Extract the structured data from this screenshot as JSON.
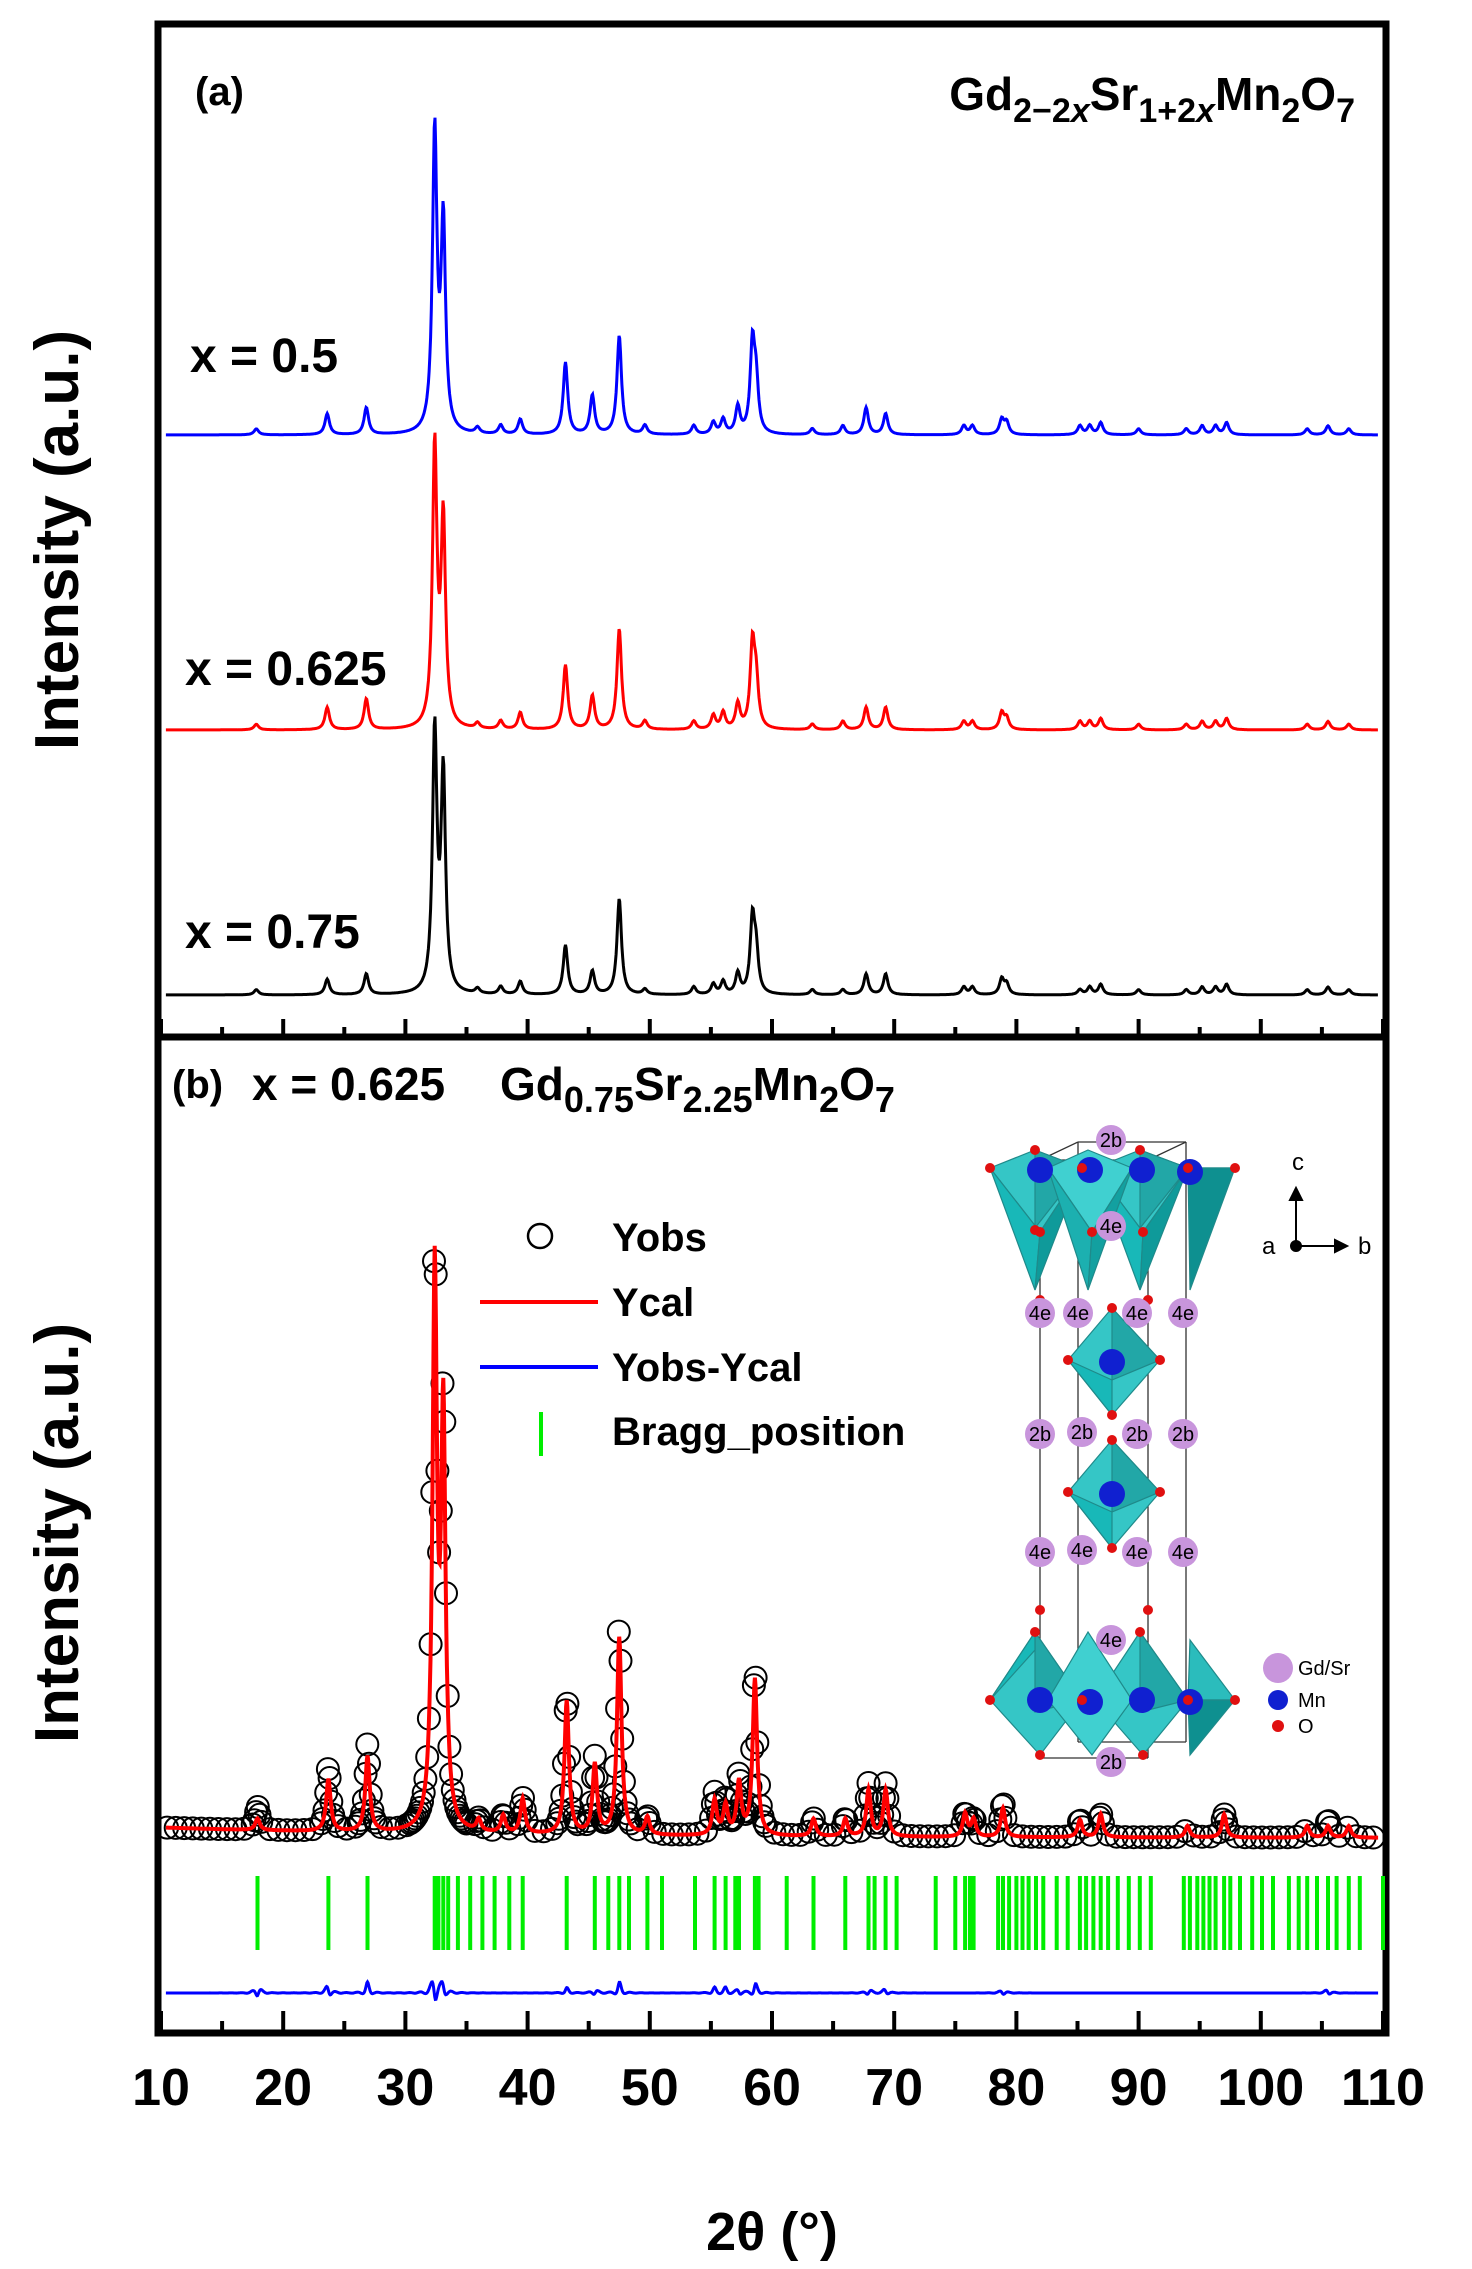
{
  "chart_data": [
    {
      "panel": "a",
      "type": "line",
      "title": "Gd2-2xSr1+2xMn2O7",
      "panel_label": "(a)",
      "xlabel": "2θ (°)",
      "ylabel": "Intensity (a.u.)",
      "xlim": [
        10,
        110
      ],
      "peak_positions": [
        17.8,
        23.6,
        26.8,
        32.4,
        33.1,
        35.9,
        37.8,
        39.4,
        43.1,
        45.3,
        47.5,
        49.6,
        53.6,
        55.2,
        56.0,
        57.2,
        58.4,
        58.7,
        63.3,
        65.8,
        67.7,
        69.3,
        75.7,
        76.4,
        78.8,
        79.2,
        85.2,
        86.0,
        86.9,
        90.0,
        93.9,
        95.2,
        96.3,
        97.2,
        103.8,
        105.5,
        107.2
      ],
      "series": [
        {
          "name": "x = 0.5",
          "color": "#0000ff",
          "offset": 0.56,
          "scale": 0.3,
          "intensities": [
            0.02,
            0.07,
            0.09,
            1.0,
            0.69,
            0.02,
            0.03,
            0.05,
            0.24,
            0.13,
            0.33,
            0.03,
            0.03,
            0.04,
            0.05,
            0.09,
            0.29,
            0.16,
            0.02,
            0.03,
            0.09,
            0.07,
            0.03,
            0.03,
            0.05,
            0.04,
            0.03,
            0.03,
            0.04,
            0.02,
            0.02,
            0.03,
            0.03,
            0.04,
            0.02,
            0.03,
            0.02
          ]
        },
        {
          "name": "x = 0.625",
          "color": "#ff0000",
          "offset": 0.265,
          "scale": 0.28,
          "intensities": [
            0.02,
            0.08,
            0.11,
            1.0,
            0.73,
            0.02,
            0.03,
            0.06,
            0.23,
            0.12,
            0.36,
            0.03,
            0.03,
            0.05,
            0.06,
            0.09,
            0.29,
            0.16,
            0.02,
            0.03,
            0.08,
            0.08,
            0.03,
            0.03,
            0.06,
            0.04,
            0.03,
            0.03,
            0.04,
            0.02,
            0.02,
            0.03,
            0.03,
            0.04,
            0.02,
            0.03,
            0.02
          ]
        },
        {
          "name": "x = 0.75",
          "color": "#000000",
          "offset": 0.0,
          "scale": 0.26,
          "intensities": [
            0.02,
            0.06,
            0.08,
            1.0,
            0.83,
            0.02,
            0.03,
            0.05,
            0.19,
            0.09,
            0.37,
            0.02,
            0.03,
            0.04,
            0.05,
            0.08,
            0.28,
            0.15,
            0.02,
            0.02,
            0.08,
            0.08,
            0.03,
            0.03,
            0.06,
            0.04,
            0.02,
            0.03,
            0.04,
            0.02,
            0.02,
            0.03,
            0.03,
            0.04,
            0.02,
            0.03,
            0.02
          ]
        }
      ]
    },
    {
      "panel": "b",
      "type": "scatter",
      "panel_label": "(b)",
      "title_prefix": "x = 0.625",
      "title": "Gd0.75Sr2.25Mn2O7",
      "xlabel": "2θ (°)",
      "ylabel": "Intensity (a.u.)",
      "xlim": [
        10,
        110
      ],
      "xticks": [
        10,
        20,
        30,
        40,
        50,
        60,
        70,
        80,
        90,
        100,
        110
      ],
      "legend": {
        "position": "center",
        "entries": [
          {
            "label": "Yobs",
            "color": "#000000",
            "marker": "circle"
          },
          {
            "label": "Ycal",
            "color": "#ff0000",
            "marker": "line"
          },
          {
            "label": "Yobs-Ycal",
            "color": "#0000ff",
            "marker": "line"
          },
          {
            "label": "Bragg_position",
            "color": "#00ee00",
            "marker": "tick"
          }
        ]
      },
      "peaks": [
        {
          "x": 17.9,
          "yobs": 0.04,
          "ycal": 0.02
        },
        {
          "x": 23.7,
          "yobs": 0.11,
          "ycal": 0.09
        },
        {
          "x": 26.9,
          "yobs": 0.15,
          "ycal": 0.13
        },
        {
          "x": 32.4,
          "yobs": 1.0,
          "ycal": 0.95
        },
        {
          "x": 33.1,
          "yobs": 0.72,
          "ycal": 0.7
        },
        {
          "x": 36.0,
          "yobs": 0.02,
          "ycal": 0.02
        },
        {
          "x": 38.0,
          "yobs": 0.03,
          "ycal": 0.03
        },
        {
          "x": 39.6,
          "yobs": 0.06,
          "ycal": 0.06
        },
        {
          "x": 43.2,
          "yobs": 0.24,
          "ycal": 0.23
        },
        {
          "x": 45.5,
          "yobs": 0.13,
          "ycal": 0.12
        },
        {
          "x": 47.5,
          "yobs": 0.36,
          "ycal": 0.34
        },
        {
          "x": 49.8,
          "yobs": 0.03,
          "ycal": 0.03
        },
        {
          "x": 55.3,
          "yobs": 0.07,
          "ycal": 0.06
        },
        {
          "x": 56.2,
          "yobs": 0.06,
          "ycal": 0.05
        },
        {
          "x": 57.3,
          "yobs": 0.1,
          "ycal": 0.09
        },
        {
          "x": 58.6,
          "yobs": 0.29,
          "ycal": 0.27
        },
        {
          "x": 63.4,
          "yobs": 0.03,
          "ycal": 0.03
        },
        {
          "x": 66.0,
          "yobs": 0.03,
          "ycal": 0.03
        },
        {
          "x": 67.9,
          "yobs": 0.09,
          "ycal": 0.08
        },
        {
          "x": 69.3,
          "yobs": 0.09,
          "ycal": 0.08
        },
        {
          "x": 75.8,
          "yobs": 0.04,
          "ycal": 0.04
        },
        {
          "x": 76.5,
          "yobs": 0.03,
          "ycal": 0.03
        },
        {
          "x": 78.9,
          "yobs": 0.06,
          "ycal": 0.05
        },
        {
          "x": 85.2,
          "yobs": 0.03,
          "ycal": 0.03
        },
        {
          "x": 86.9,
          "yobs": 0.04,
          "ycal": 0.04
        },
        {
          "x": 94.0,
          "yobs": 0.02,
          "ycal": 0.02
        },
        {
          "x": 97.0,
          "yobs": 0.04,
          "ycal": 0.04
        },
        {
          "x": 103.8,
          "yobs": 0.02,
          "ycal": 0.02
        },
        {
          "x": 105.5,
          "yobs": 0.03,
          "ycal": 0.02
        },
        {
          "x": 107.2,
          "yobs": 0.02,
          "ycal": 0.02
        }
      ],
      "bragg_positions": [
        17.9,
        23.7,
        26.9,
        32.4,
        32.7,
        33.1,
        33.5,
        34.3,
        35.3,
        36.3,
        37.3,
        38.5,
        39.6,
        43.2,
        45.5,
        46.6,
        47.5,
        48.3,
        49.8,
        51.0,
        53.7,
        55.3,
        56.2,
        57.0,
        57.3,
        58.6,
        58.9,
        61.2,
        63.4,
        66.0,
        67.9,
        68.4,
        69.3,
        70.2,
        73.4,
        75.0,
        75.8,
        76.2,
        76.5,
        78.5,
        78.9,
        79.4,
        80.0,
        80.5,
        81.0,
        81.6,
        82.2,
        83.3,
        84.2,
        85.2,
        85.7,
        86.3,
        86.9,
        87.5,
        88.3,
        89.2,
        90.1,
        91.0,
        93.7,
        94.2,
        94.8,
        95.3,
        95.8,
        96.3,
        97.0,
        97.5,
        98.3,
        99.3,
        100.1,
        101.0,
        102.3,
        103.1,
        103.8,
        104.6,
        105.5,
        106.2,
        107.2,
        108.1,
        110.0
      ]
    }
  ],
  "inset": {
    "site_labels": {
      "top": "2b",
      "middle_row1": [
        "4e",
        "4e",
        "4e",
        "4e"
      ],
      "middle_row2": [
        "2b",
        "2b",
        "2b",
        "2b"
      ],
      "middle_row3": [
        "4e",
        "4e",
        "4e",
        "4e"
      ],
      "upper": "4e",
      "lower": "4e",
      "bottom": "2b"
    },
    "axes": {
      "c": "c",
      "a": "a",
      "b": "b"
    },
    "legend": [
      {
        "label": "Gd/Sr",
        "color": "#c895dc"
      },
      {
        "label": "Mn",
        "color": "#1020d0"
      },
      {
        "label": "O",
        "color": "#e01010"
      }
    ]
  }
}
